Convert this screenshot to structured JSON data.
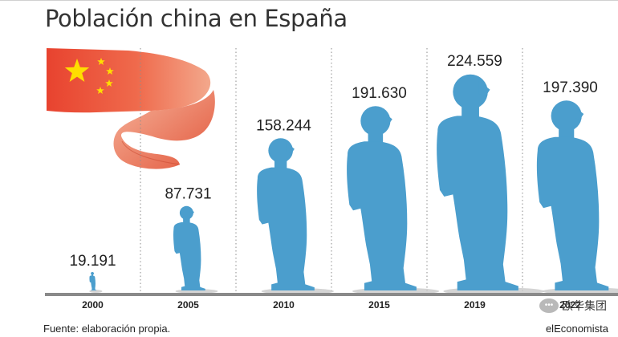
{
  "header": {
    "title": "Población china en España"
  },
  "chart_data": {
    "type": "bar",
    "title": "Población china en España",
    "categories": [
      "2000",
      "2005",
      "2010",
      "2015",
      "2019",
      "2022"
    ],
    "values": [
      19191,
      87731,
      158244,
      191630,
      224559,
      197390
    ],
    "data_labels": [
      "19.191",
      "87.731",
      "158.244",
      "191.630",
      "224.559",
      "197.390"
    ],
    "mark": "standing person silhouette",
    "bar_color": "#4b9ecd",
    "grid": true
  },
  "decoration": {
    "flag": "china-flag-ribbon",
    "flag_color": "#e8432f",
    "star_color": "#ffde00"
  },
  "footer": {
    "source": "Fuente: elaboración propia.",
    "brand": "elEconomista"
  },
  "watermark": {
    "text": "欧华集团",
    "icon": "chat-bubble-icon"
  }
}
